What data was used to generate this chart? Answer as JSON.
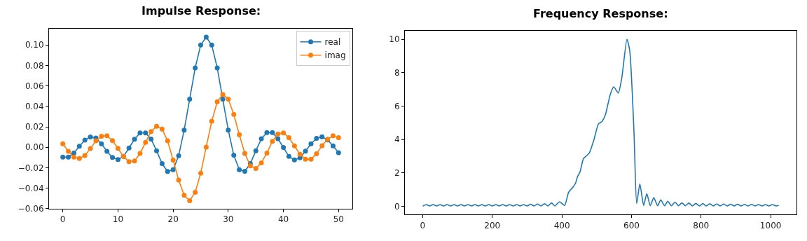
{
  "chart_data": [
    {
      "type": "line",
      "title": "Impulse Response:",
      "marker": "circle",
      "line_style": "solid",
      "legend": "top right",
      "x": [
        0,
        1,
        2,
        3,
        4,
        5,
        6,
        7,
        8,
        9,
        10,
        11,
        12,
        13,
        14,
        15,
        16,
        17,
        18,
        19,
        20,
        21,
        22,
        23,
        24,
        25,
        26,
        27,
        28,
        29,
        30,
        31,
        32,
        33,
        34,
        35,
        36,
        37,
        38,
        39,
        40,
        41,
        42,
        43,
        44,
        45,
        46,
        47,
        48,
        49,
        50
      ],
      "series": [
        {
          "name": "real",
          "color": "#1f77b4",
          "values": [
            -0.0096,
            -0.0096,
            -0.0056,
            0.001,
            0.007,
            0.01,
            0.009,
            0.0034,
            -0.004,
            -0.01,
            -0.012,
            -0.009,
            -0.0007,
            0.0078,
            0.014,
            0.014,
            0.008,
            -0.0034,
            -0.016,
            -0.0237,
            -0.022,
            -0.0083,
            0.0168,
            0.047,
            0.0776,
            0.0999,
            0.1077,
            0.0999,
            0.0776,
            0.047,
            0.0168,
            -0.0078,
            -0.0219,
            -0.0235,
            -0.016,
            -0.0034,
            0.0083,
            0.0143,
            0.0143,
            0.0083,
            -0.0002,
            -0.009,
            -0.0123,
            -0.0103,
            -0.0038,
            0.0034,
            0.0087,
            0.0103,
            0.0072,
            0.0013,
            -0.0054
          ]
        },
        {
          "name": "imag",
          "color": "#ff7f0e",
          "values": [
            0.0034,
            -0.004,
            -0.0096,
            -0.011,
            -0.008,
            -0.0013,
            0.0063,
            0.0107,
            0.0112,
            0.0065,
            -0.0011,
            -0.009,
            -0.014,
            -0.0134,
            -0.006,
            0.0047,
            0.0154,
            0.0206,
            0.0177,
            0.0063,
            -0.0125,
            -0.032,
            -0.047,
            -0.0523,
            -0.044,
            -0.0253,
            0.0002,
            0.0255,
            0.0445,
            0.0516,
            0.047,
            0.0322,
            0.0123,
            -0.006,
            -0.0181,
            -0.0208,
            -0.0152,
            -0.0056,
            0.0058,
            0.013,
            0.0141,
            0.0094,
            0.0013,
            -0.0069,
            -0.0116,
            -0.0116,
            -0.0063,
            0.0016,
            0.0078,
            0.0112,
            0.0094
          ]
        }
      ],
      "xlim": [
        -2.5,
        52.5
      ],
      "ylim": [
        -0.06,
        0.116
      ],
      "xticks": [
        0,
        10,
        20,
        30,
        40,
        50
      ],
      "yticks": [
        {
          "value": -0.06,
          "label": "−0.06"
        },
        {
          "value": -0.04,
          "label": "−0.04"
        },
        {
          "value": -0.02,
          "label": "−0.02"
        },
        {
          "value": 0,
          "label": "0.00"
        },
        {
          "value": 0.02,
          "label": "0.02"
        },
        {
          "value": 0.04,
          "label": "0.04"
        },
        {
          "value": 0.06,
          "label": "0.06"
        },
        {
          "value": 0.08,
          "label": "0.08"
        },
        {
          "value": 0.1,
          "label": "0.10"
        }
      ]
    },
    {
      "type": "line",
      "title": "Frequency Response:",
      "marker": "none",
      "line_style": "solid",
      "legend": false,
      "x": [
        0,
        10,
        20,
        30,
        40,
        50,
        60,
        70,
        80,
        90,
        100,
        110,
        120,
        130,
        140,
        150,
        160,
        170,
        180,
        190,
        200,
        210,
        220,
        230,
        240,
        250,
        260,
        270,
        280,
        290,
        300,
        310,
        320,
        330,
        340,
        350,
        360,
        370,
        380,
        393,
        408,
        419,
        432,
        439,
        445,
        452,
        462,
        472,
        479,
        492,
        505,
        515,
        525,
        539,
        549,
        562,
        572,
        587,
        595,
        607,
        615,
        624,
        635,
        644,
        654,
        664,
        675,
        684,
        695,
        704,
        715,
        725,
        735,
        745,
        755,
        765,
        775,
        785,
        795,
        805,
        815,
        825,
        835,
        845,
        855,
        865,
        875,
        885,
        895,
        905,
        915,
        925,
        935,
        945,
        955,
        965,
        975,
        985,
        995,
        1005,
        1015,
        1023
      ],
      "series": [
        {
          "color": "#1f77b4",
          "values": [
            0.0,
            0.1,
            0.02,
            0.1,
            0.02,
            0.1,
            0.02,
            0.1,
            0.02,
            0.1,
            0.02,
            0.1,
            0.02,
            0.1,
            0.02,
            0.1,
            0.02,
            0.1,
            0.02,
            0.1,
            0.02,
            0.1,
            0.02,
            0.1,
            0.02,
            0.1,
            0.02,
            0.1,
            0.02,
            0.1,
            0.02,
            0.12,
            0.02,
            0.13,
            0.02,
            0.15,
            0.02,
            0.2,
            0.02,
            0.27,
            0.05,
            0.82,
            1.15,
            1.37,
            1.78,
            2.05,
            2.85,
            3.05,
            3.2,
            3.97,
            4.93,
            5.07,
            5.48,
            6.7,
            7.15,
            6.78,
            7.67,
            10.0,
            9.3,
            4.52,
            0.16,
            1.34,
            0.05,
            0.75,
            0.04,
            0.52,
            0.03,
            0.38,
            0.03,
            0.3,
            0.03,
            0.25,
            0.03,
            0.2,
            0.03,
            0.19,
            0.02,
            0.17,
            0.02,
            0.16,
            0.02,
            0.15,
            0.02,
            0.14,
            0.02,
            0.13,
            0.02,
            0.12,
            0.02,
            0.12,
            0.02,
            0.11,
            0.02,
            0.11,
            0.02,
            0.1,
            0.02,
            0.1,
            0.02,
            0.1,
            0.02,
            0.05
          ]
        }
      ],
      "xlim": [
        -51.2,
        1074.2
      ],
      "ylim": [
        -0.5,
        10.5
      ],
      "xticks": [
        0,
        200,
        400,
        600,
        800,
        1000
      ],
      "yticks": [
        0,
        2,
        4,
        6,
        8,
        10
      ]
    }
  ]
}
